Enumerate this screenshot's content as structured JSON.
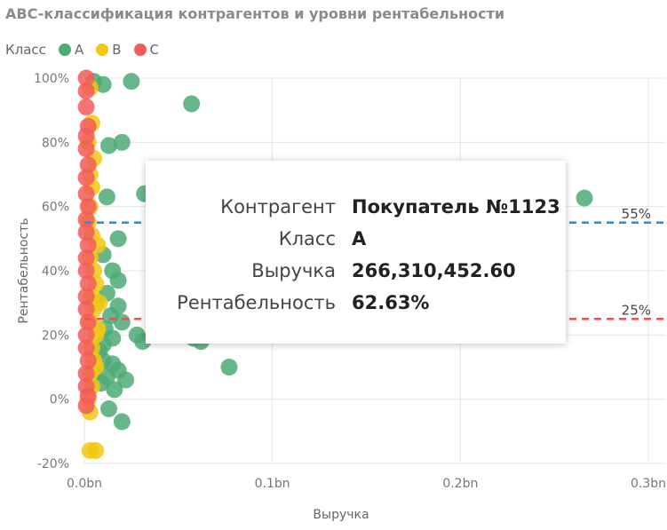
{
  "title": "ABC-классификация контрагентов и уровни рентабельности",
  "legend_label": "Класс",
  "colors": {
    "A": "#4daa75",
    "B": "#f2c811",
    "C": "#f25c5c",
    "line55": "#2f8bd6",
    "line25": "#e8534b"
  },
  "tooltip": {
    "k1": "Контрагент",
    "v1": "Покупатель №1123",
    "k2": "Класс",
    "v2": "A",
    "k3": "Выручка",
    "v3": "266,310,452.60",
    "k4": "Рентабельность",
    "v4": "62.63%"
  },
  "chart_data": {
    "type": "scatter",
    "title": "ABC-классификация контрагентов и уровни рентабельности",
    "xlabel": "Выручка",
    "ylabel": "Рентабельность",
    "xlim": [
      0,
      0.3
    ],
    "ylim": [
      -20,
      100
    ],
    "x_ticks": [
      "0.0bn",
      "0.1bn",
      "0.2bn",
      "0.3bn"
    ],
    "y_ticks": [
      "-20%",
      "0%",
      "20%",
      "40%",
      "60%",
      "80%",
      "100%"
    ],
    "legend": [
      "A",
      "B",
      "C"
    ],
    "reference_lines": [
      {
        "value": 55,
        "label": "55%"
      },
      {
        "value": 25,
        "label": "25%"
      }
    ],
    "series": [
      {
        "name": "A",
        "points": [
          [
            0.005,
            99
          ],
          [
            0.01,
            98
          ],
          [
            0.025,
            99
          ],
          [
            0.057,
            92
          ],
          [
            0.013,
            79
          ],
          [
            0.02,
            80
          ],
          [
            0.012,
            63
          ],
          [
            0.032,
            64
          ],
          [
            0.266,
            62.63
          ],
          [
            0.018,
            50
          ],
          [
            0.01,
            45
          ],
          [
            0.015,
            40
          ],
          [
            0.018,
            37
          ],
          [
            0.012,
            33
          ],
          [
            0.018,
            29
          ],
          [
            0.014,
            26
          ],
          [
            0.02,
            24
          ],
          [
            0.028,
            20
          ],
          [
            0.031,
            18
          ],
          [
            0.015,
            19
          ],
          [
            0.01,
            17
          ],
          [
            0.058,
            19
          ],
          [
            0.062,
            18
          ],
          [
            0.077,
            10
          ],
          [
            0.015,
            11
          ],
          [
            0.018,
            9
          ],
          [
            0.012,
            7
          ],
          [
            0.022,
            6
          ],
          [
            0.009,
            5
          ],
          [
            0.016,
            3
          ],
          [
            0.013,
            -3
          ],
          [
            0.02,
            -7
          ],
          [
            0.008,
            15
          ],
          [
            0.011,
            22
          ],
          [
            0.006,
            30
          ],
          [
            0.01,
            12
          ],
          [
            0.005,
            8
          ]
        ]
      },
      {
        "name": "B",
        "points": [
          [
            0.003,
            97
          ],
          [
            0.004,
            86
          ],
          [
            0.002,
            80
          ],
          [
            0.005,
            75
          ],
          [
            0.003,
            70
          ],
          [
            0.004,
            66
          ],
          [
            0.003,
            60
          ],
          [
            0.002,
            55
          ],
          [
            0.004,
            51
          ],
          [
            0.007,
            48
          ],
          [
            0.003,
            44
          ],
          [
            0.005,
            40
          ],
          [
            0.006,
            36
          ],
          [
            0.004,
            32
          ],
          [
            0.005,
            28
          ],
          [
            0.003,
            24
          ],
          [
            0.006,
            20
          ],
          [
            0.004,
            16
          ],
          [
            0.005,
            12
          ],
          [
            0.003,
            8
          ],
          [
            0.004,
            4
          ],
          [
            0.002,
            0
          ],
          [
            0.003,
            -4
          ],
          [
            0.003,
            -16
          ],
          [
            0.006,
            -16
          ],
          [
            0.008,
            30
          ],
          [
            0.007,
            22
          ],
          [
            0.006,
            10
          ]
        ]
      },
      {
        "name": "C",
        "points": [
          [
            0.001,
            100
          ],
          [
            0.001,
            96
          ],
          [
            0.001,
            91
          ],
          [
            0.002,
            85
          ],
          [
            0.001,
            82
          ],
          [
            0.001,
            78
          ],
          [
            0.002,
            73
          ],
          [
            0.001,
            69
          ],
          [
            0.001,
            64
          ],
          [
            0.002,
            60
          ],
          [
            0.001,
            56
          ],
          [
            0.001,
            52
          ],
          [
            0.002,
            48
          ],
          [
            0.001,
            44
          ],
          [
            0.001,
            40
          ],
          [
            0.002,
            36
          ],
          [
            0.001,
            32
          ],
          [
            0.001,
            28
          ],
          [
            0.002,
            24
          ],
          [
            0.001,
            20
          ],
          [
            0.001,
            16
          ],
          [
            0.002,
            12
          ],
          [
            0.001,
            8
          ],
          [
            0.001,
            4
          ],
          [
            0.002,
            1
          ],
          [
            0.001,
            -2
          ]
        ]
      }
    ]
  }
}
